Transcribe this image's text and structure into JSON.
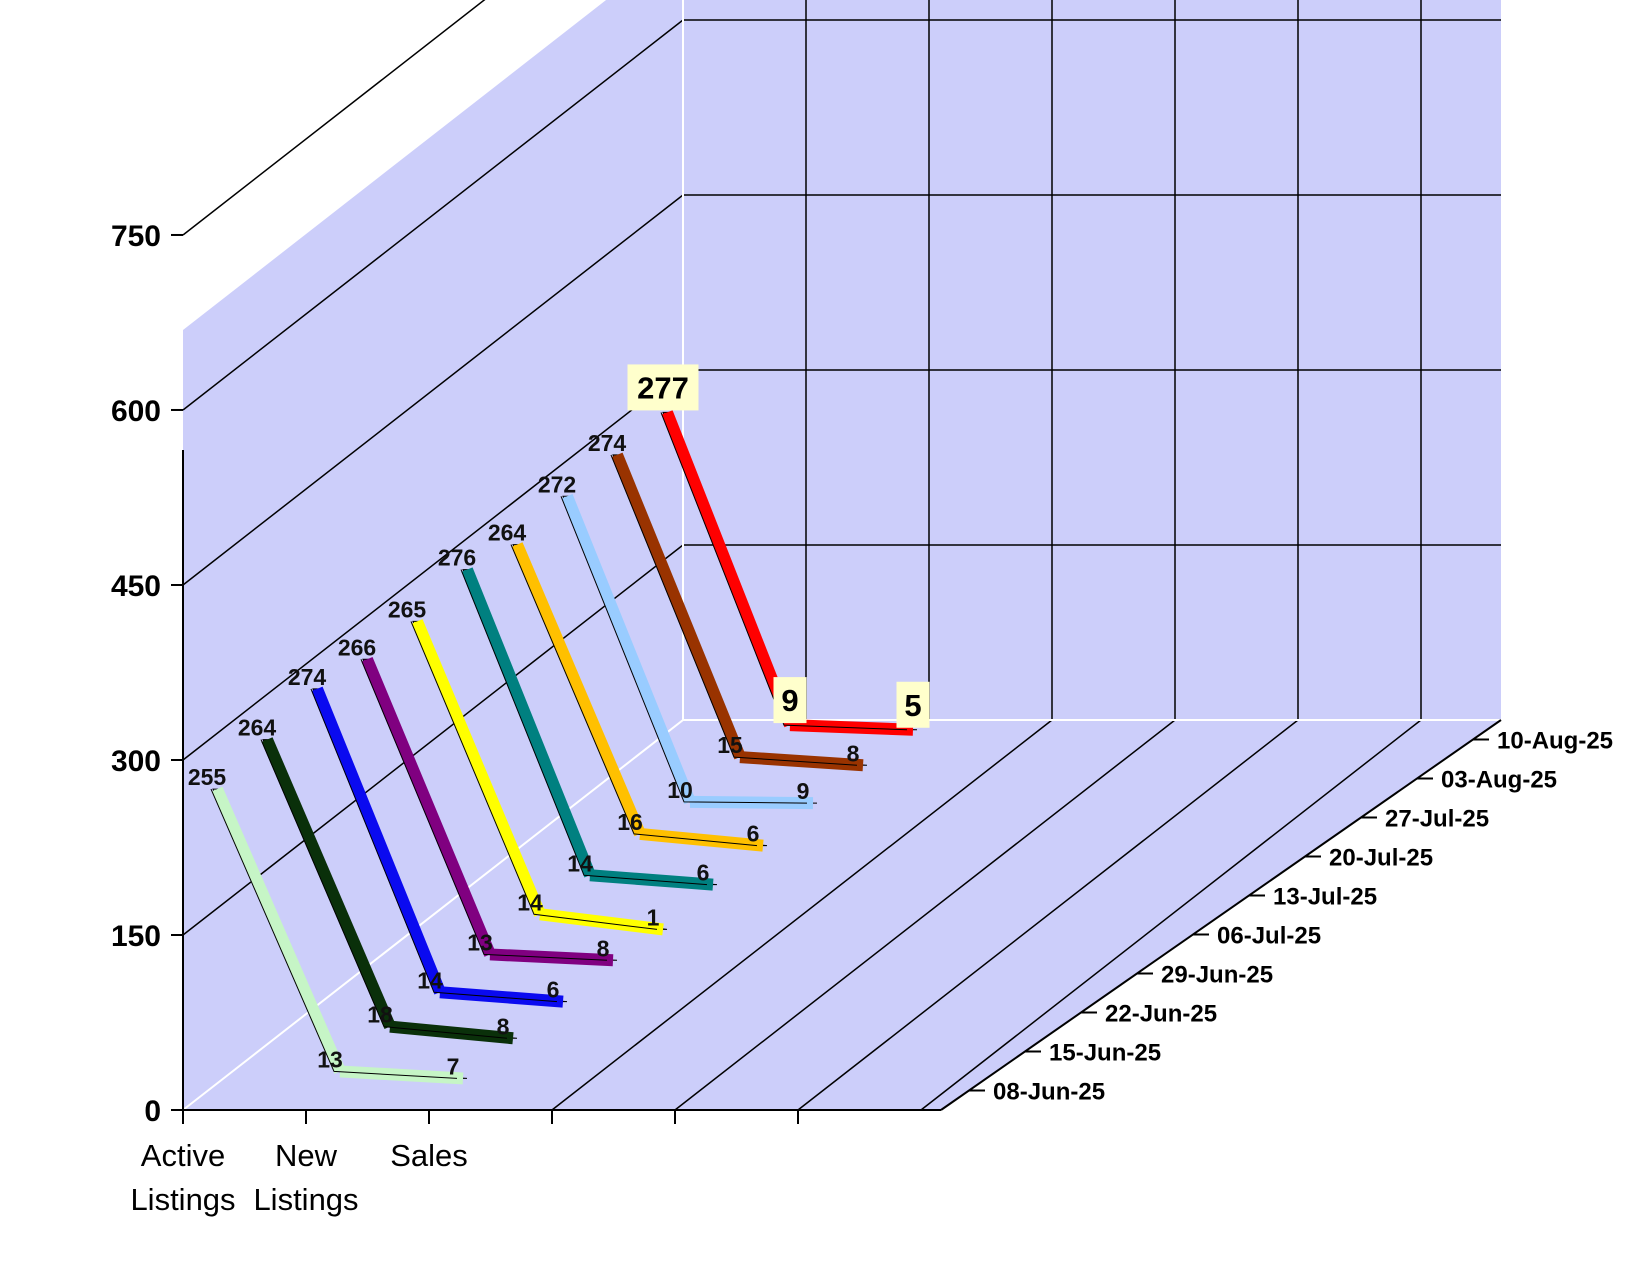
{
  "chart_data": {
    "type": "line",
    "categories": [
      [
        "Active",
        "Listings"
      ],
      [
        "New",
        "Listings"
      ],
      [
        "Sales"
      ]
    ],
    "yticks": [
      0,
      150,
      300,
      450,
      600,
      750
    ],
    "ylim": [
      0,
      750
    ],
    "series": [
      {
        "name": "08-Jun-25",
        "values": [
          255,
          13,
          7
        ],
        "color": "#c6f5c6"
      },
      {
        "name": "15-Jun-25",
        "values": [
          264,
          18,
          8
        ],
        "color": "#0a300a"
      },
      {
        "name": "22-Jun-25",
        "values": [
          274,
          14,
          6
        ],
        "color": "#0a0af0"
      },
      {
        "name": "29-Jun-25",
        "values": [
          266,
          13,
          8
        ],
        "color": "#800080"
      },
      {
        "name": "06-Jul-25",
        "values": [
          265,
          14,
          1
        ],
        "color": "#ffff00"
      },
      {
        "name": "13-Jul-25",
        "values": [
          276,
          14,
          6
        ],
        "color": "#008080"
      },
      {
        "name": "20-Jul-25",
        "values": [
          264,
          16,
          6
        ],
        "color": "#ffc000"
      },
      {
        "name": "27-Jul-25",
        "values": [
          272,
          10,
          9
        ],
        "color": "#99ccff"
      },
      {
        "name": "03-Aug-25",
        "values": [
          274,
          15,
          8
        ],
        "color": "#993300"
      },
      {
        "name": "10-Aug-25",
        "values": [
          277,
          9,
          5
        ],
        "color": "#ff0000"
      }
    ],
    "highlighted_series": "10-Aug-25",
    "grid": true
  }
}
